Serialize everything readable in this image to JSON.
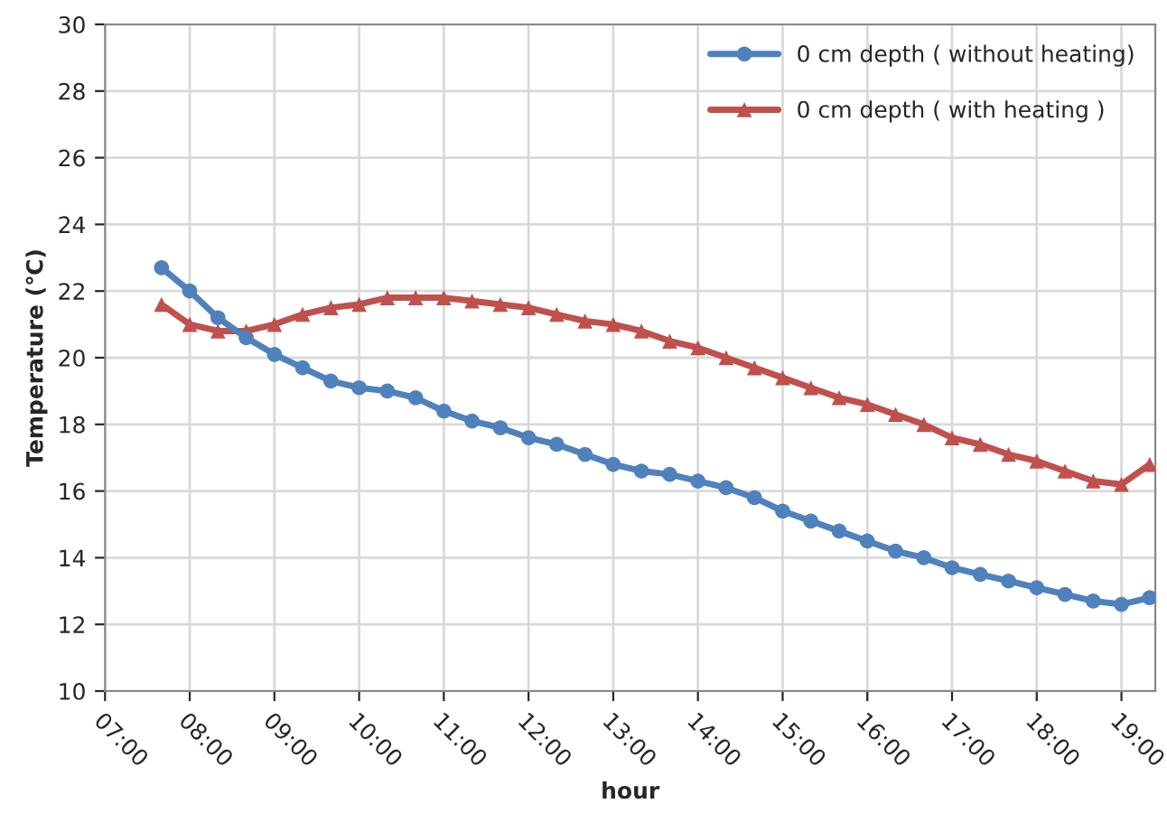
{
  "chart_data": {
    "type": "line",
    "xlabel": "hour",
    "ylabel": "Temperature (℃)",
    "x": [
      7.667,
      8.0,
      8.333,
      8.667,
      9.0,
      9.333,
      9.667,
      10.0,
      10.333,
      10.667,
      11.0,
      11.333,
      11.667,
      12.0,
      12.333,
      12.667,
      13.0,
      13.333,
      13.667,
      14.0,
      14.333,
      14.667,
      15.0,
      15.333,
      15.667,
      16.0,
      16.333,
      16.667,
      17.0,
      17.333,
      17.667,
      18.0,
      18.333,
      18.667,
      19.0,
      19.333
    ],
    "series": [
      {
        "name": "0 cm depth ( without heating)",
        "color": "#4f81bd",
        "marker": "circle",
        "values": [
          22.7,
          22.0,
          21.2,
          20.6,
          20.1,
          19.7,
          19.3,
          19.1,
          19.0,
          18.8,
          18.4,
          18.1,
          17.9,
          17.6,
          17.4,
          17.1,
          16.8,
          16.6,
          16.5,
          16.3,
          16.1,
          15.8,
          15.4,
          15.1,
          14.8,
          14.5,
          14.2,
          14.0,
          13.7,
          13.5,
          13.3,
          13.1,
          12.9,
          12.7,
          12.6,
          12.8
        ]
      },
      {
        "name": "0 cm depth ( with heating )",
        "color": "#c0504d",
        "marker": "triangle",
        "values": [
          21.6,
          21.0,
          20.8,
          20.8,
          21.0,
          21.3,
          21.5,
          21.6,
          21.8,
          21.8,
          21.8,
          21.7,
          21.6,
          21.5,
          21.3,
          21.1,
          21.0,
          20.8,
          20.5,
          20.3,
          20.0,
          19.7,
          19.4,
          19.1,
          18.8,
          18.6,
          18.3,
          18.0,
          17.6,
          17.4,
          17.1,
          16.9,
          16.6,
          16.3,
          16.2,
          16.8
        ]
      }
    ],
    "xlim": [
      7,
      19.4
    ],
    "xticks": [
      {
        "value": 7,
        "label": "07:00"
      },
      {
        "value": 8,
        "label": "08:00"
      },
      {
        "value": 9,
        "label": "09:00"
      },
      {
        "value": 10,
        "label": "10:00"
      },
      {
        "value": 11,
        "label": "11:00"
      },
      {
        "value": 12,
        "label": "12:00"
      },
      {
        "value": 13,
        "label": "13:00"
      },
      {
        "value": 14,
        "label": "14:00"
      },
      {
        "value": 15,
        "label": "15:00"
      },
      {
        "value": 16,
        "label": "16:00"
      },
      {
        "value": 17,
        "label": "17:00"
      },
      {
        "value": 18,
        "label": "18:00"
      },
      {
        "value": 19,
        "label": "19:00"
      }
    ],
    "ylim": [
      10,
      30
    ],
    "yticks": [
      10,
      12,
      14,
      16,
      18,
      20,
      22,
      24,
      26,
      28,
      30
    ],
    "grid": true,
    "legend": "top right",
    "line_style": "solid"
  }
}
